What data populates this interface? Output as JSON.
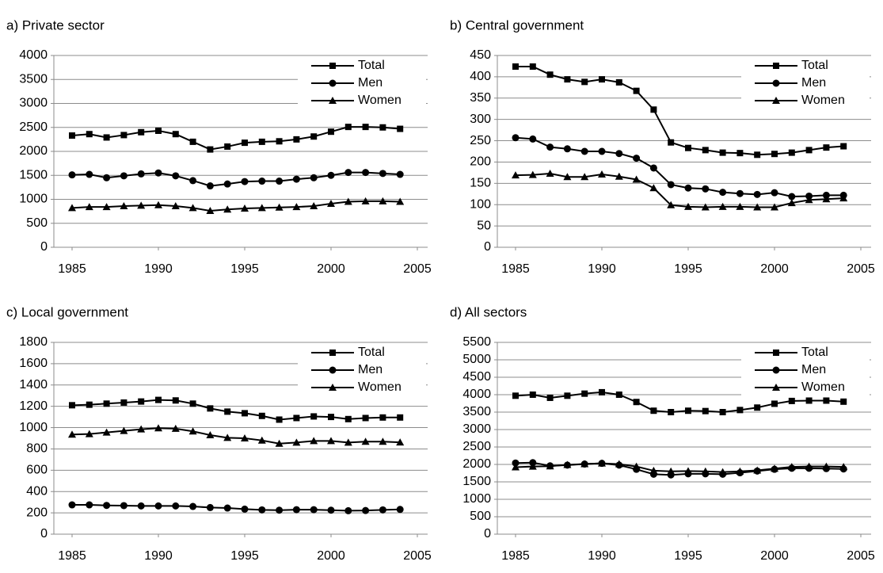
{
  "chart_data": [
    {
      "type": "line",
      "title": "a) Private sector",
      "x": [
        1985,
        1986,
        1987,
        1988,
        1989,
        1990,
        1991,
        1992,
        1993,
        1994,
        1995,
        1996,
        1997,
        1998,
        1999,
        2000,
        2001,
        2002,
        2003,
        2004
      ],
      "xlim": [
        1985,
        2005
      ],
      "xticks": [
        1985,
        1990,
        1995,
        2000,
        2005
      ],
      "ylim": [
        0,
        4000
      ],
      "yticks": [
        0,
        500,
        1000,
        1500,
        2000,
        2500,
        3000,
        3500,
        4000
      ],
      "grid": true,
      "legend": "top-right",
      "series": [
        {
          "name": "Total",
          "color": "#000000",
          "marker": "square",
          "values": [
            2330,
            2360,
            2290,
            2340,
            2400,
            2430,
            2360,
            2200,
            2040,
            2100,
            2180,
            2200,
            2210,
            2250,
            2310,
            2410,
            2510,
            2510,
            2500,
            2470
          ]
        },
        {
          "name": "Men",
          "color": "#000000",
          "marker": "circle",
          "values": [
            1510,
            1520,
            1450,
            1490,
            1530,
            1550,
            1490,
            1390,
            1280,
            1320,
            1370,
            1380,
            1380,
            1420,
            1450,
            1500,
            1560,
            1560,
            1540,
            1520
          ]
        },
        {
          "name": "Women",
          "color": "#000000",
          "marker": "triangle",
          "values": [
            820,
            840,
            840,
            860,
            870,
            880,
            860,
            820,
            760,
            790,
            810,
            820,
            830,
            840,
            860,
            910,
            950,
            960,
            960,
            950
          ]
        }
      ]
    },
    {
      "type": "line",
      "title": "b) Central government",
      "x": [
        1985,
        1986,
        1987,
        1988,
        1989,
        1990,
        1991,
        1992,
        1993,
        1994,
        1995,
        1996,
        1997,
        1998,
        1999,
        2000,
        2001,
        2002,
        2003,
        2004
      ],
      "xlim": [
        1985,
        2005
      ],
      "xticks": [
        1985,
        1990,
        1995,
        2000,
        2005
      ],
      "ylim": [
        0,
        450
      ],
      "yticks": [
        0,
        50,
        100,
        150,
        200,
        250,
        300,
        350,
        400,
        450
      ],
      "grid": true,
      "legend": "top-right",
      "series": [
        {
          "name": "Total",
          "color": "#000000",
          "marker": "square",
          "values": [
            424,
            424,
            405,
            394,
            388,
            394,
            387,
            367,
            323,
            246,
            233,
            228,
            222,
            221,
            217,
            219,
            222,
            228,
            234,
            237
          ]
        },
        {
          "name": "Men",
          "color": "#000000",
          "marker": "circle",
          "values": [
            257,
            254,
            235,
            231,
            225,
            225,
            220,
            209,
            186,
            147,
            139,
            137,
            129,
            126,
            124,
            128,
            119,
            120,
            122,
            122
          ]
        },
        {
          "name": "Women",
          "color": "#000000",
          "marker": "triangle",
          "values": [
            169,
            170,
            173,
            165,
            165,
            171,
            166,
            159,
            139,
            99,
            95,
            94,
            95,
            95,
            94,
            94,
            104,
            111,
            113,
            115
          ]
        }
      ]
    },
    {
      "type": "line",
      "title": "c) Local government",
      "x": [
        1985,
        1986,
        1987,
        1988,
        1989,
        1990,
        1991,
        1992,
        1993,
        1994,
        1995,
        1996,
        1997,
        1998,
        1999,
        2000,
        2001,
        2002,
        2003,
        2004
      ],
      "xlim": [
        1985,
        2005
      ],
      "xticks": [
        1985,
        1990,
        1995,
        2000,
        2005
      ],
      "ylim": [
        0,
        1800
      ],
      "yticks": [
        0,
        200,
        400,
        600,
        800,
        1000,
        1200,
        1400,
        1600,
        1800
      ],
      "grid": true,
      "legend": "top-right",
      "series": [
        {
          "name": "Total",
          "color": "#000000",
          "marker": "square",
          "values": [
            1210,
            1215,
            1225,
            1235,
            1245,
            1260,
            1255,
            1225,
            1180,
            1150,
            1135,
            1110,
            1075,
            1090,
            1105,
            1100,
            1080,
            1090,
            1095,
            1095
          ]
        },
        {
          "name": "Men",
          "color": "#000000",
          "marker": "circle",
          "values": [
            275,
            275,
            270,
            268,
            265,
            265,
            265,
            260,
            250,
            245,
            235,
            228,
            225,
            230,
            230,
            225,
            220,
            222,
            228,
            232
          ]
        },
        {
          "name": "Women",
          "color": "#000000",
          "marker": "triangle",
          "values": [
            935,
            940,
            955,
            970,
            985,
            995,
            990,
            965,
            930,
            905,
            900,
            880,
            850,
            860,
            875,
            875,
            860,
            868,
            868,
            862
          ]
        }
      ]
    },
    {
      "type": "line",
      "title": "d) All sectors",
      "x": [
        1985,
        1986,
        1987,
        1988,
        1989,
        1990,
        1991,
        1992,
        1993,
        1994,
        1995,
        1996,
        1997,
        1998,
        1999,
        2000,
        2001,
        2002,
        2003,
        2004
      ],
      "xlim": [
        1985,
        2005
      ],
      "xticks": [
        1985,
        1990,
        1995,
        2000,
        2005
      ],
      "ylim": [
        0,
        5500
      ],
      "yticks": [
        0,
        500,
        1000,
        1500,
        2000,
        2500,
        3000,
        3500,
        4000,
        4500,
        5000,
        5500
      ],
      "grid": true,
      "legend": "top-right",
      "series": [
        {
          "name": "Total",
          "color": "#000000",
          "marker": "square",
          "values": [
            3970,
            4000,
            3910,
            3970,
            4030,
            4070,
            4000,
            3790,
            3540,
            3500,
            3540,
            3530,
            3500,
            3560,
            3630,
            3740,
            3820,
            3830,
            3830,
            3800
          ]
        },
        {
          "name": "Men",
          "color": "#000000",
          "marker": "circle",
          "values": [
            2040,
            2050,
            1960,
            1980,
            2010,
            2030,
            1980,
            1860,
            1720,
            1700,
            1730,
            1730,
            1720,
            1760,
            1810,
            1860,
            1890,
            1890,
            1880,
            1870
          ]
        },
        {
          "name": "Women",
          "color": "#000000",
          "marker": "triangle",
          "values": [
            1920,
            1940,
            1950,
            1990,
            2010,
            2030,
            2010,
            1940,
            1820,
            1800,
            1810,
            1800,
            1780,
            1800,
            1830,
            1880,
            1930,
            1940,
            1940,
            1930
          ]
        }
      ]
    }
  ]
}
